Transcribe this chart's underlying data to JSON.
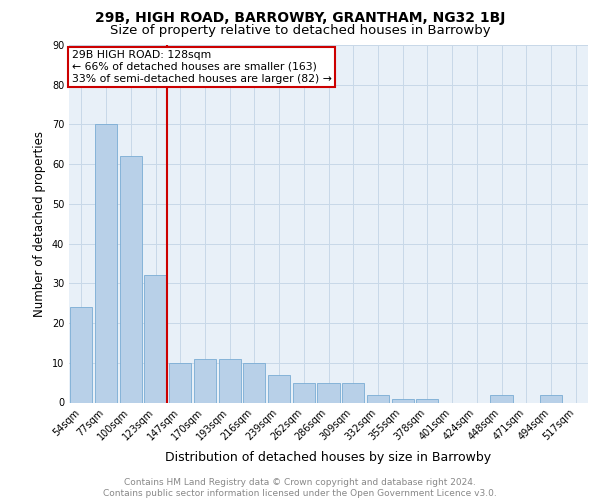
{
  "title_line1": "29B, HIGH ROAD, BARROWBY, GRANTHAM, NG32 1BJ",
  "title_line2": "Size of property relative to detached houses in Barrowby",
  "xlabel": "Distribution of detached houses by size in Barrowby",
  "ylabel": "Number of detached properties",
  "categories": [
    "54sqm",
    "77sqm",
    "100sqm",
    "123sqm",
    "147sqm",
    "170sqm",
    "193sqm",
    "216sqm",
    "239sqm",
    "262sqm",
    "286sqm",
    "309sqm",
    "332sqm",
    "355sqm",
    "378sqm",
    "401sqm",
    "424sqm",
    "448sqm",
    "471sqm",
    "494sqm",
    "517sqm"
  ],
  "values": [
    24,
    70,
    62,
    32,
    10,
    11,
    11,
    10,
    7,
    5,
    5,
    5,
    2,
    1,
    1,
    0,
    0,
    2,
    0,
    2,
    0
  ],
  "bar_color": "#b8d0e8",
  "bar_edge_color": "#7aacd4",
  "vline_color": "#cc0000",
  "vline_x": 3.45,
  "annotation_text": "29B HIGH ROAD: 128sqm\n← 66% of detached houses are smaller (163)\n33% of semi-detached houses are larger (82) →",
  "annotation_box_color": "#ffffff",
  "annotation_box_edge_color": "#cc0000",
  "ylim": [
    0,
    90
  ],
  "yticks": [
    0,
    10,
    20,
    30,
    40,
    50,
    60,
    70,
    80,
    90
  ],
  "grid_color": "#c8d8e8",
  "background_color": "#e8f0f8",
  "footer_text": "Contains HM Land Registry data © Crown copyright and database right 2024.\nContains public sector information licensed under the Open Government Licence v3.0.",
  "title_fontsize": 10,
  "subtitle_fontsize": 9.5,
  "tick_fontsize": 7,
  "ylabel_fontsize": 8.5,
  "xlabel_fontsize": 9,
  "footer_fontsize": 6.5
}
